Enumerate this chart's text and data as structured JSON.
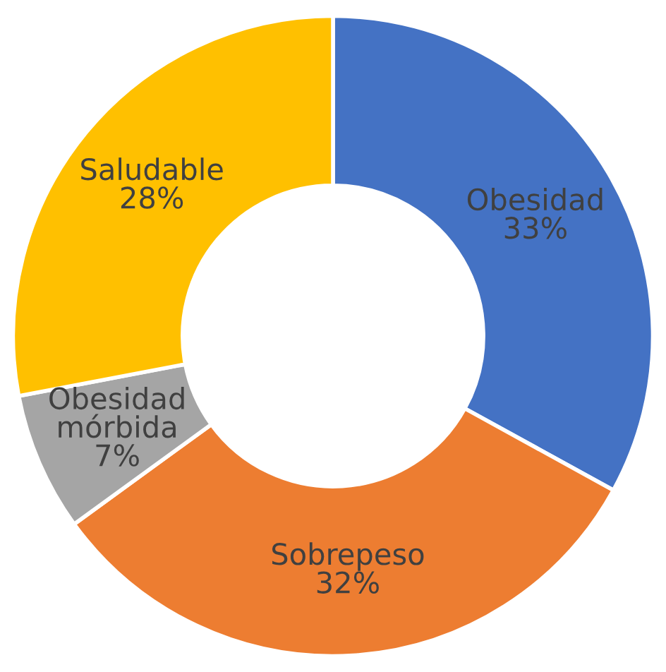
{
  "chart_data": {
    "type": "donut",
    "categories": [
      "Obesidad",
      "Sobrepeso",
      "Obesidad mórbida",
      "Saludable"
    ],
    "values": [
      33,
      32,
      7,
      28
    ],
    "colors": [
      "#4472c4",
      "#ed7d31",
      "#a5a5a5",
      "#ffc000"
    ],
    "value_labels": [
      "33%",
      "32%",
      "7%",
      "28%"
    ],
    "legend": false
  }
}
